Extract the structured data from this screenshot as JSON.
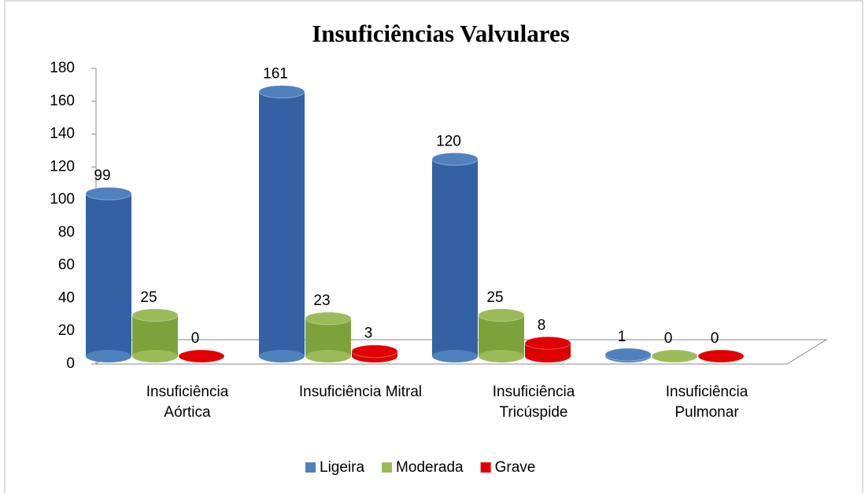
{
  "chart_data": {
    "type": "bar3d",
    "title": "Insuficiências Valvulares",
    "categories": [
      "Insuficiência Aórtica",
      "Insuficiência Mitral",
      "Insuficiência Tricúspide",
      "Insuficiência Pulmonar"
    ],
    "series": [
      {
        "name": "Ligeira",
        "color": "#4f81bd",
        "values": [
          99,
          161,
          120,
          1
        ]
      },
      {
        "name": "Moderada",
        "color": "#9bbb59",
        "values": [
          25,
          23,
          25,
          0
        ]
      },
      {
        "name": "Grave",
        "color": "#e00000",
        "values": [
          0,
          3,
          8,
          0
        ]
      }
    ],
    "ylim": [
      0,
      180
    ],
    "yticks": [
      0,
      20,
      40,
      60,
      80,
      100,
      120,
      140,
      160,
      180
    ],
    "legend": "bottom"
  }
}
